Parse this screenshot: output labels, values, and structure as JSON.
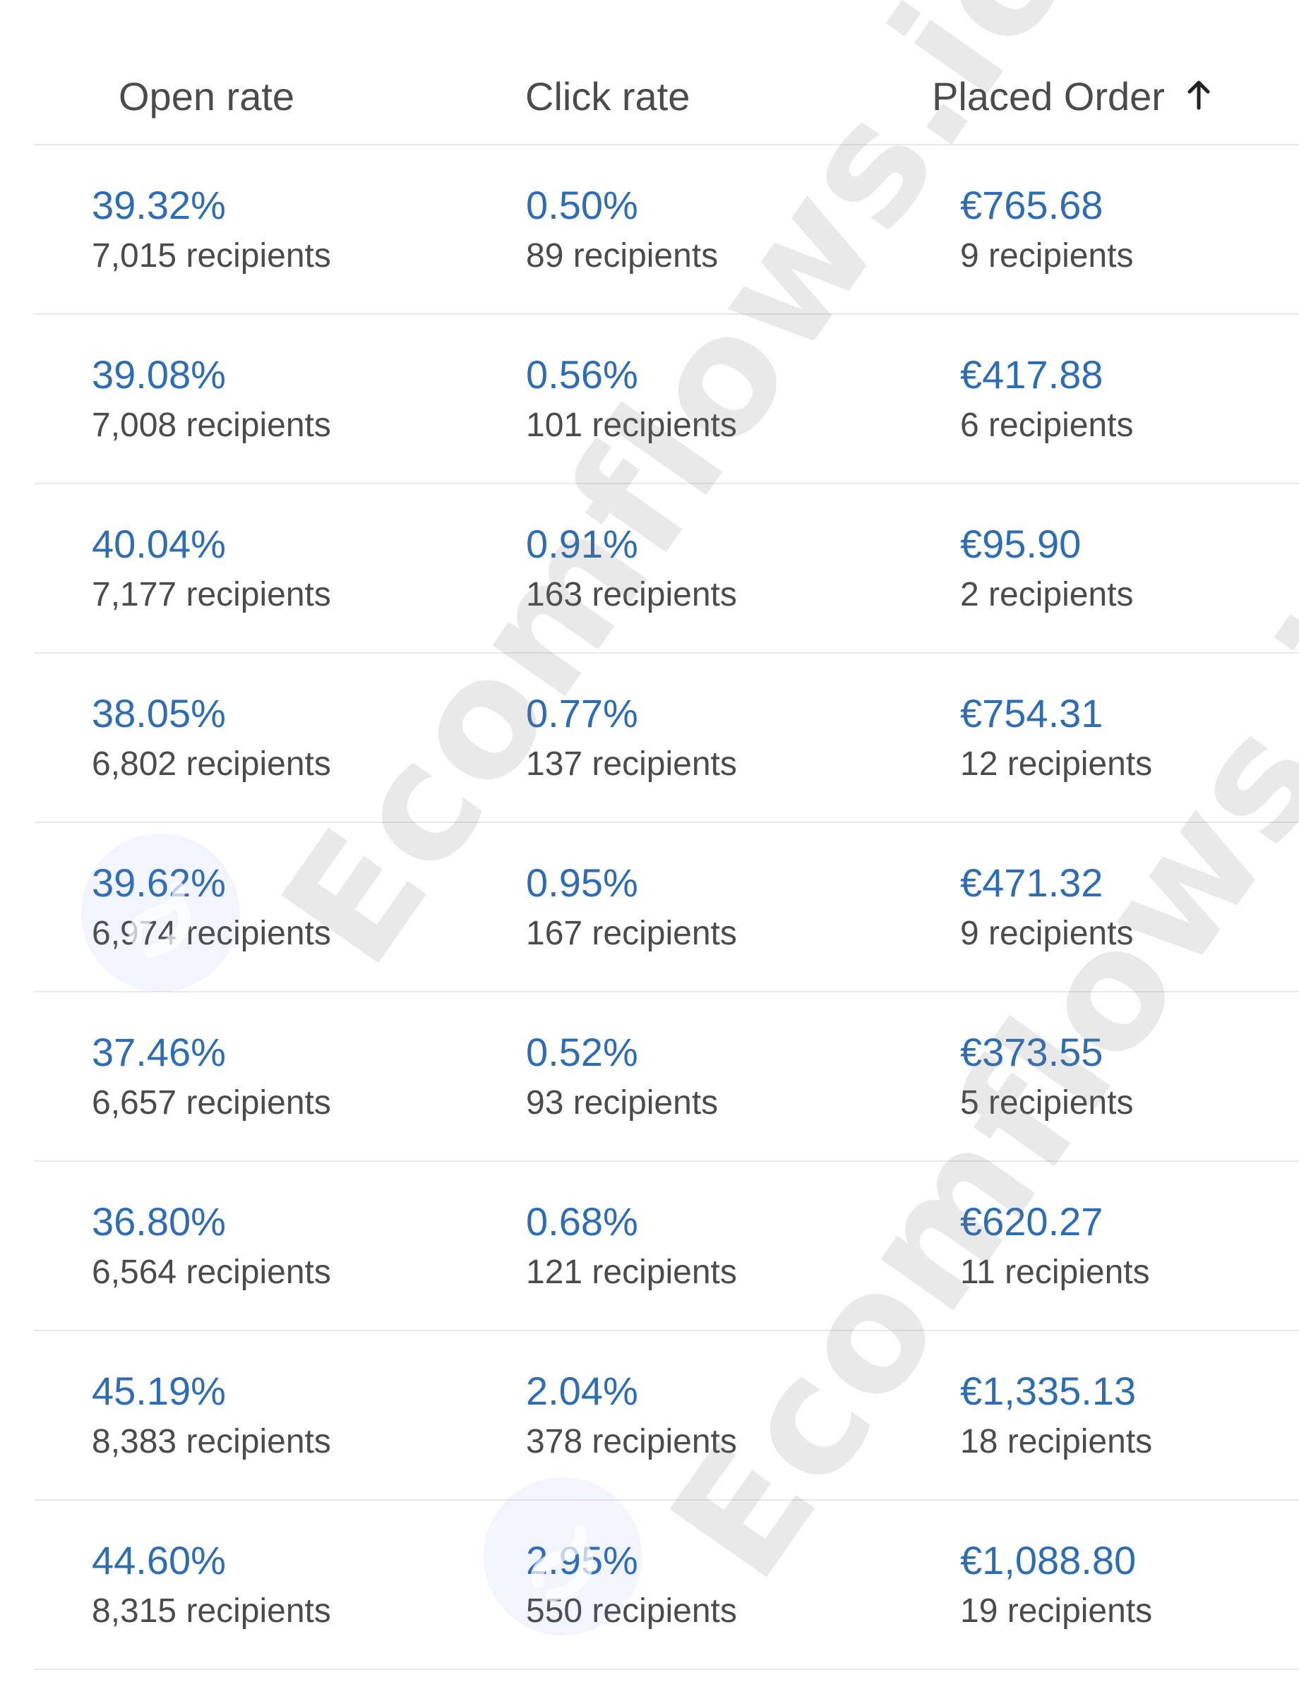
{
  "header": {
    "open_rate": "Open rate",
    "click_rate": "Click rate",
    "placed_order": "Placed Order",
    "sort_icon": "arrow-up-icon"
  },
  "rows": [
    {
      "open_rate": "39.32%",
      "open_recipients": "7,015 recipients",
      "click_rate": "0.50%",
      "click_recipients": "89 recipients",
      "placed_order": "€765.68",
      "order_recipients": "9 recipients"
    },
    {
      "open_rate": "39.08%",
      "open_recipients": "7,008 recipients",
      "click_rate": "0.56%",
      "click_recipients": "101 recipients",
      "placed_order": "€417.88",
      "order_recipients": "6 recipients"
    },
    {
      "open_rate": "40.04%",
      "open_recipients": "7,177 recipients",
      "click_rate": "0.91%",
      "click_recipients": "163 recipients",
      "placed_order": "€95.90",
      "order_recipients": "2 recipients"
    },
    {
      "open_rate": "38.05%",
      "open_recipients": "6,802 recipients",
      "click_rate": "0.77%",
      "click_recipients": "137 recipients",
      "placed_order": "€754.31",
      "order_recipients": "12 recipients"
    },
    {
      "open_rate": "39.62%",
      "open_recipients": "6,974 recipients",
      "click_rate": "0.95%",
      "click_recipients": "167 recipients",
      "placed_order": "€471.32",
      "order_recipients": "9 recipients"
    },
    {
      "open_rate": "37.46%",
      "open_recipients": "6,657 recipients",
      "click_rate": "0.52%",
      "click_recipients": "93 recipients",
      "placed_order": "€373.55",
      "order_recipients": "5 recipients"
    },
    {
      "open_rate": "36.80%",
      "open_recipients": "6,564 recipients",
      "click_rate": "0.68%",
      "click_recipients": "121 recipients",
      "placed_order": "€620.27",
      "order_recipients": "11 recipients"
    },
    {
      "open_rate": "45.19%",
      "open_recipients": "8,383 recipients",
      "click_rate": "2.04%",
      "click_recipients": "378 recipients",
      "placed_order": "€1,335.13",
      "order_recipients": "18 recipients"
    },
    {
      "open_rate": "44.60%",
      "open_recipients": "8,315 recipients",
      "click_rate": "2.95%",
      "click_recipients": "550 recipients",
      "placed_order": "€1,088.80",
      "order_recipients": "19 recipients"
    }
  ],
  "watermark": {
    "text": "Ecomflows.io",
    "icon": "ecomflows-logo-icon"
  },
  "colors": {
    "link_blue": "#2f6db3",
    "text_gray": "#4b4b4b",
    "divider": "#e8e8ea"
  }
}
